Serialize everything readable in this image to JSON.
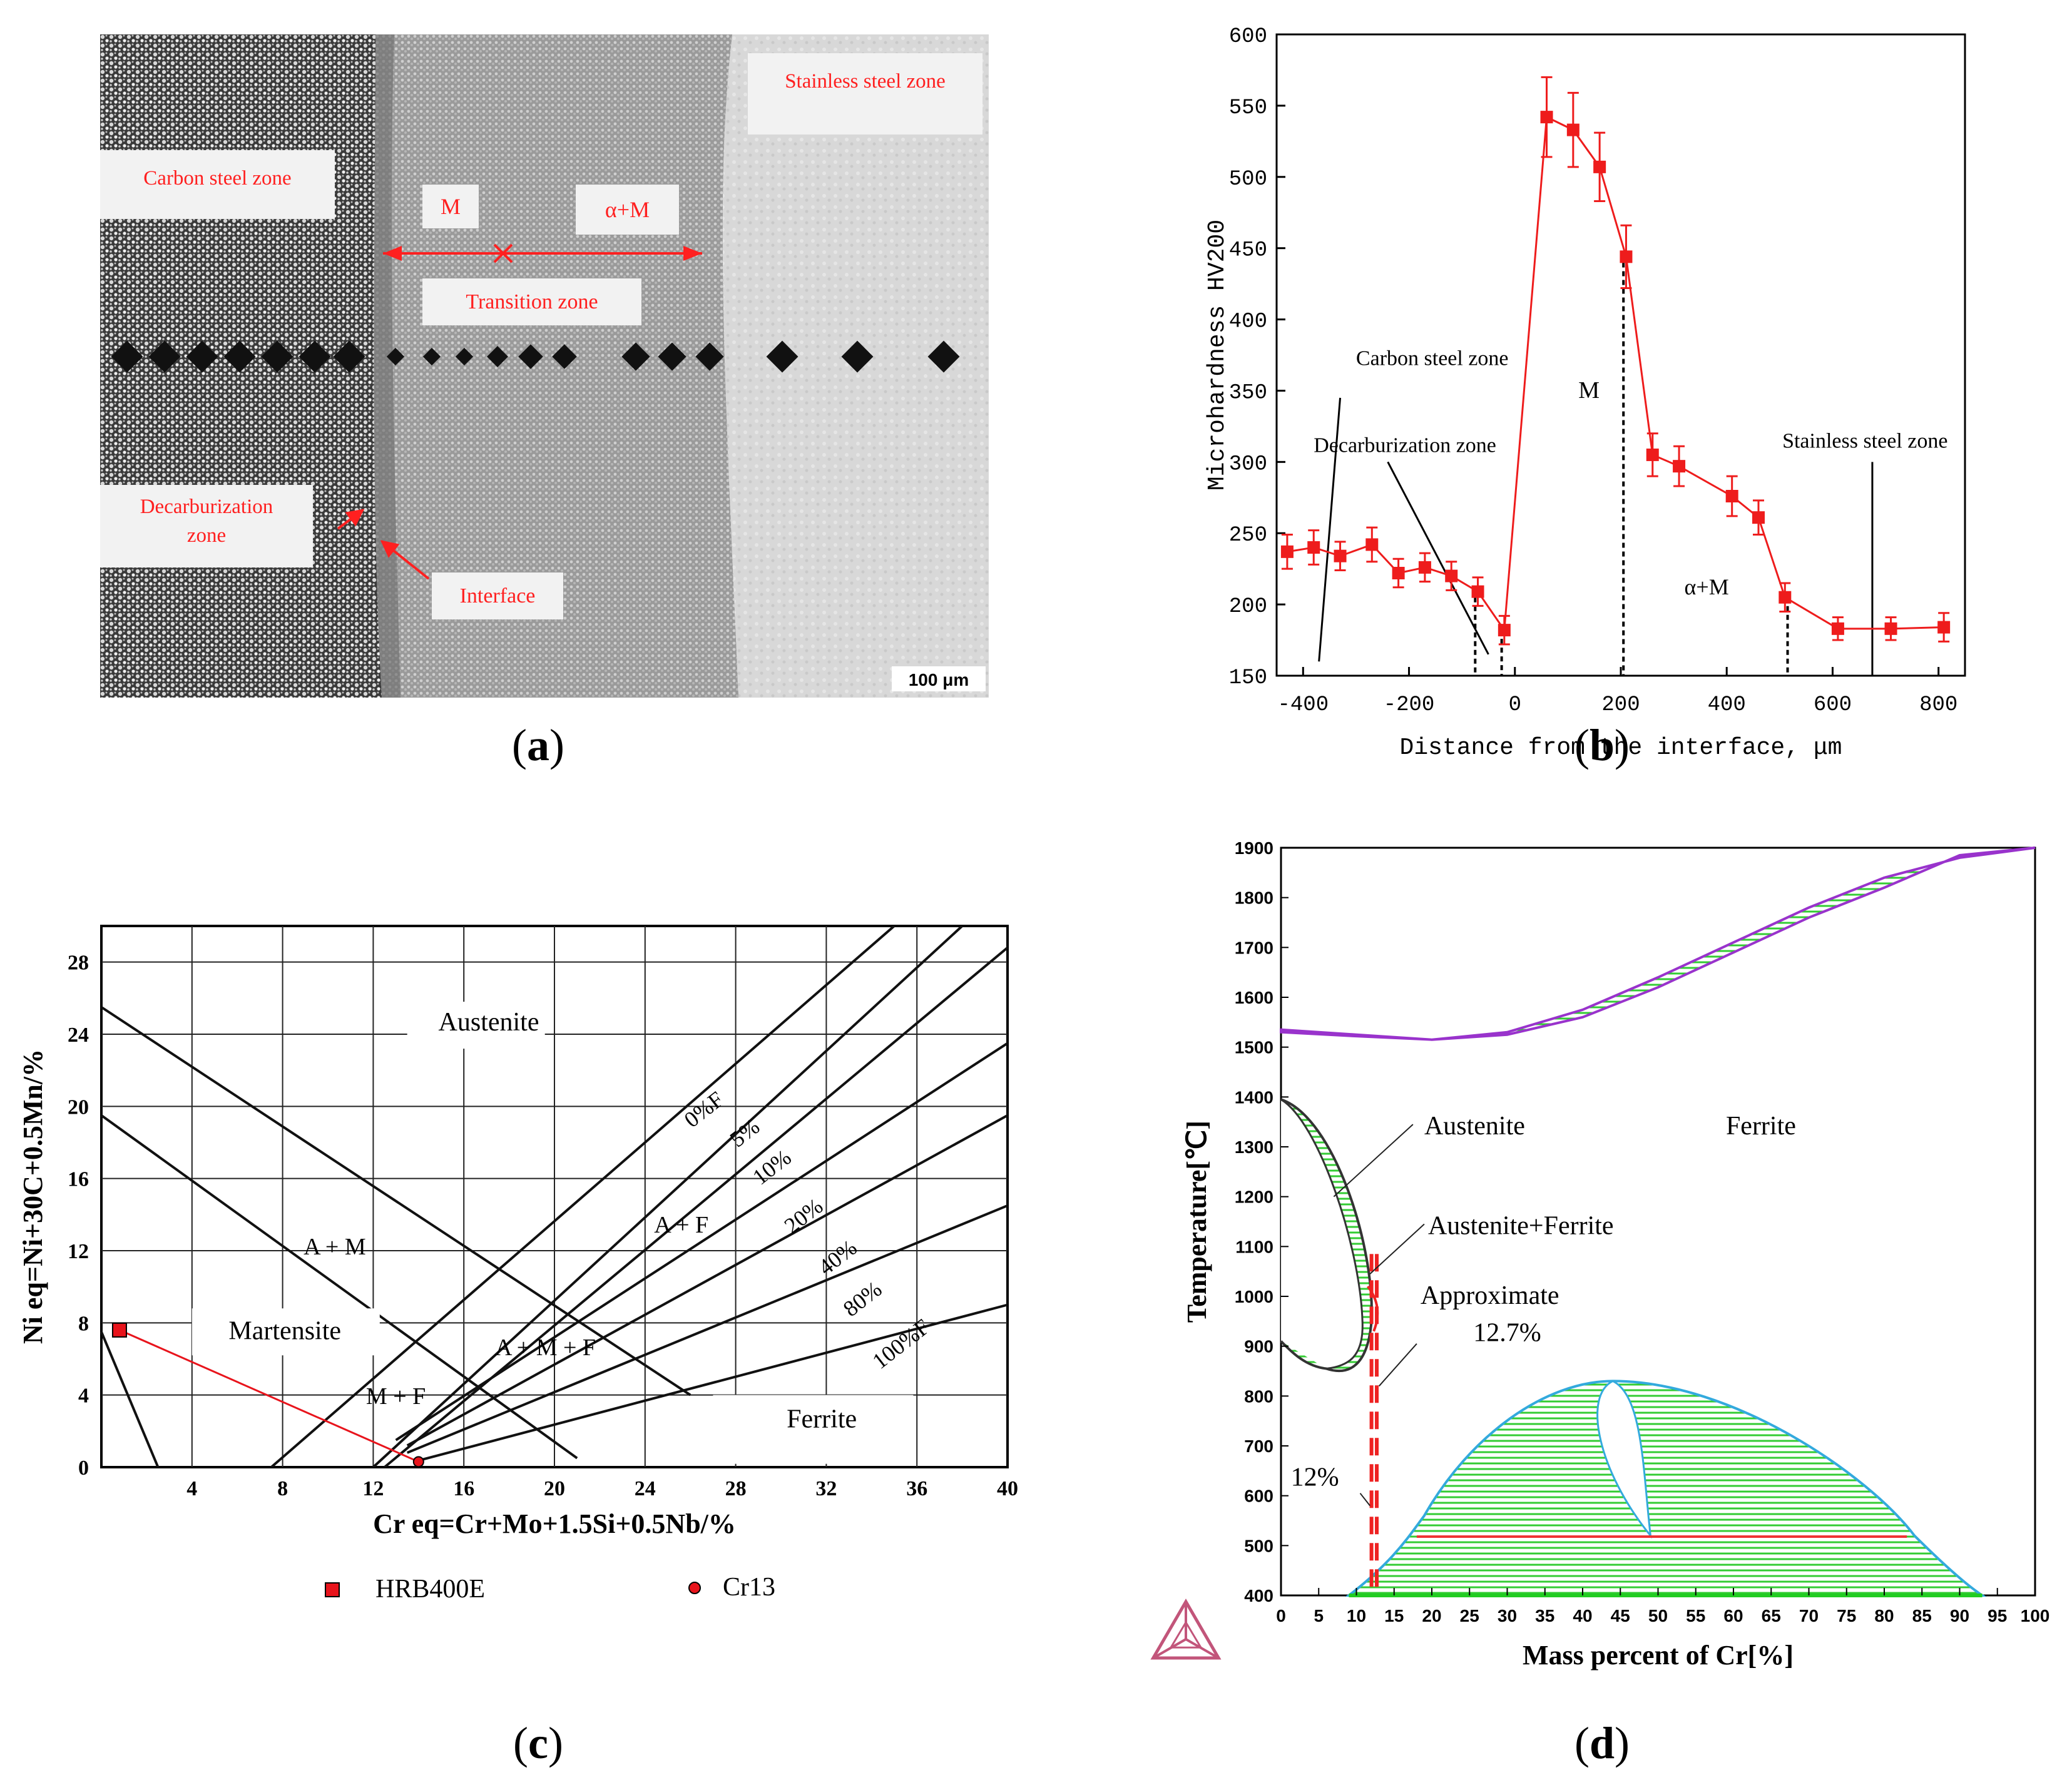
{
  "panel_a": {
    "caption_letter": "a",
    "labels": {
      "stainless": "Stainless steel zone",
      "carbon": "Carbon steel zone",
      "m": "M",
      "am": "α+M",
      "transition": "Transition zone",
      "decarb_line1": "Decarburization",
      "decarb_line2": "zone",
      "interface": "Interface",
      "scale": "100 μm"
    },
    "colors": {
      "label_text": "#ff2020",
      "arrow": "#ff2020"
    }
  },
  "panel_b": {
    "caption_letter": "b",
    "annotations": {
      "carbon": "Carbon steel zone",
      "decarb": "Decarburization zone",
      "m": "M",
      "stainless": "Stainless steel zone",
      "am": "α+M"
    }
  },
  "panel_c": {
    "caption_letter": "c",
    "regions": {
      "austenite": "Austenite",
      "am": "A + M",
      "martensite": "Martensite",
      "af": "A + F",
      "amf": "A + M + F",
      "mf": "M + F",
      "ferrite": "Ferrite"
    },
    "ferrite_lines": [
      "0%F",
      "5%",
      "10%",
      "20%",
      "40%",
      "80%",
      "100%F"
    ],
    "legend": [
      {
        "label": "HRB400E",
        "marker": "square",
        "color": "#e8141c"
      },
      {
        "label": "Cr13",
        "marker": "circle",
        "color": "#e8141c"
      }
    ]
  },
  "panel_d": {
    "caption_letter": "d",
    "regions": {
      "austenite": "Austenite",
      "ferrite": "Ferrite",
      "austenite_ferrite": "Austenite+Ferrite",
      "approx_line1": "Approximate",
      "approx_line2": "12.7%",
      "twelve": "12%"
    },
    "colors": {
      "hatch": "#33cc33",
      "liquidus": "#9933cc",
      "gamma_loop": "#333333",
      "sigma": "#33aadd",
      "marker": "#ee2222"
    }
  },
  "chart_data": [
    {
      "type": "scatter",
      "panel": "b",
      "xlabel": "Distance from the interface, μm",
      "ylabel": "Microhardness HV200",
      "xlim": [
        -450,
        850
      ],
      "ylim": [
        150,
        600
      ],
      "xticks": [
        -400,
        -200,
        0,
        200,
        400,
        600,
        800
      ],
      "yticks": [
        150,
        200,
        250,
        300,
        350,
        400,
        450,
        500,
        550,
        600
      ],
      "series": [
        {
          "x": [
            -430,
            -380,
            -330,
            -270,
            -220,
            -170,
            -120,
            -70,
            -20,
            60,
            110,
            160,
            210,
            260,
            310,
            410,
            460,
            510,
            610,
            710,
            810
          ],
          "y": [
            237,
            240,
            234,
            242,
            222,
            226,
            220,
            209,
            182,
            542,
            533,
            507,
            444,
            305,
            297,
            276,
            261,
            205,
            183,
            183,
            184
          ],
          "err": [
            12,
            12,
            10,
            12,
            10,
            10,
            10,
            10,
            10,
            28,
            26,
            24,
            22,
            15,
            14,
            14,
            12,
            10,
            8,
            8,
            10
          ],
          "color": "#ee1c1c"
        }
      ],
      "markers": [
        {
          "text": "Carbon steel zone",
          "x": -370,
          "y": 160
        },
        {
          "text": "Decarburization zone",
          "x": -50,
          "y": 152
        }
      ],
      "boundaries_x": [
        -75,
        -25,
        205,
        515,
        675
      ]
    },
    {
      "type": "line",
      "panel": "c",
      "xlabel": "Cr eq=Cr+Mo+1.5Si+0.5Nb/%",
      "ylabel": "Ni eq=Ni+30C+0.5Mn/%",
      "xlim": [
        0,
        40
      ],
      "ylim": [
        0,
        30
      ],
      "xticks": [
        4,
        8,
        12,
        16,
        20,
        24,
        28,
        32,
        36,
        40
      ],
      "yticks": [
        0,
        4,
        8,
        12,
        16,
        20,
        24,
        28
      ],
      "points": [
        {
          "label": "HRB400E",
          "x": 0.8,
          "y": 7.6
        },
        {
          "label": "Cr13",
          "x": 14,
          "y": 0.3
        }
      ]
    },
    {
      "type": "area",
      "panel": "d",
      "xlabel": "Mass percent of Cr[%]",
      "ylabel": "Temperature[℃]",
      "xlim": [
        0,
        100
      ],
      "ylim": [
        400,
        1900
      ],
      "xticks": [
        0,
        5,
        10,
        15,
        20,
        25,
        30,
        35,
        40,
        45,
        50,
        55,
        60,
        65,
        70,
        75,
        80,
        85,
        90,
        95,
        100
      ],
      "yticks": [
        400,
        500,
        600,
        700,
        800,
        900,
        1000,
        1100,
        1200,
        1300,
        1400,
        1500,
        1600,
        1700,
        1800,
        1900
      ],
      "verticals": [
        12,
        12.7
      ]
    }
  ]
}
